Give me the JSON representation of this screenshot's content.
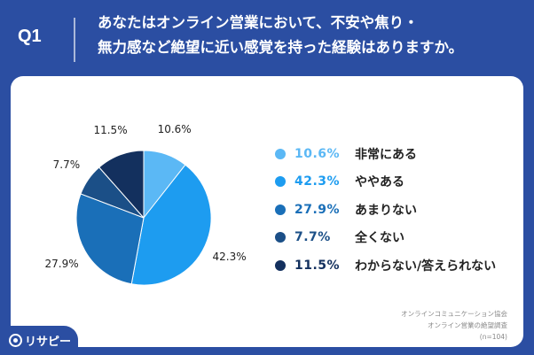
{
  "header": {
    "q_label": "Q1",
    "question_line1": "あなたはオンライン営業において、不安や焦り・",
    "question_line2": "無力感など絶望に近い感覚を持った経験はありますか。"
  },
  "chart_data": {
    "type": "pie",
    "start_angle": "12 o'clock",
    "direction": "clockwise",
    "slices": [
      {
        "label": "非常にある",
        "value": 10.6,
        "display": "10.6%",
        "color": "#5bb8f5"
      },
      {
        "label": "ややある",
        "value": 42.3,
        "display": "42.3%",
        "color": "#1d9cf0"
      },
      {
        "label": "あまりない",
        "value": 27.9,
        "display": "27.9%",
        "color": "#1a6fb8"
      },
      {
        "label": "全くない",
        "value": 7.7,
        "display": "7.7%",
        "color": "#1b4f87"
      },
      {
        "label": "わからない/答えられない",
        "value": 11.5,
        "display": "11.5%",
        "color": "#13305e"
      }
    ]
  },
  "source": {
    "line1": "オンラインコミュニケーション協会",
    "line2": "オンライン営業の絶望調査",
    "line3": "(n=104)"
  },
  "logo": {
    "text": "リサピー",
    "icon": "location-pin-icon"
  }
}
